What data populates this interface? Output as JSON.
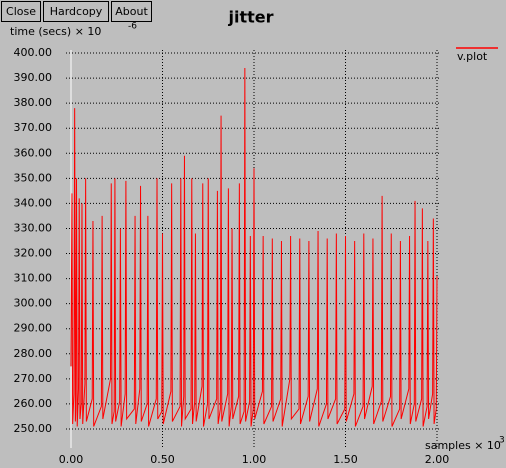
{
  "buttons": [
    "Close",
    "Hardcopy",
    "About"
  ],
  "chart_data": {
    "type": "line",
    "title": "jitter",
    "y_label": "time (secs) × 10",
    "y_label_exponent": "-6",
    "x_label": "samples × 10",
    "x_label_exponent": "3",
    "xlim": [
      0,
      2
    ],
    "ylim": [
      250,
      400
    ],
    "xticks": [
      {
        "value": 0,
        "label": "0.00"
      },
      {
        "value": 0.5,
        "label": "0.50"
      },
      {
        "value": 1,
        "label": "1.00"
      },
      {
        "value": 1.5,
        "label": "1.50"
      },
      {
        "value": 2,
        "label": "2.00"
      }
    ],
    "yticks": [
      {
        "value": 250,
        "label": "250.00"
      },
      {
        "value": 260,
        "label": "260.00"
      },
      {
        "value": 270,
        "label": "270.00"
      },
      {
        "value": 280,
        "label": "280.00"
      },
      {
        "value": 290,
        "label": "290.00"
      },
      {
        "value": 300,
        "label": "300.00"
      },
      {
        "value": 310,
        "label": "310.00"
      },
      {
        "value": 320,
        "label": "320.00"
      },
      {
        "value": 330,
        "label": "330.00"
      },
      {
        "value": 340,
        "label": "340.00"
      },
      {
        "value": 350,
        "label": "350.00"
      },
      {
        "value": 360,
        "label": "360.00"
      },
      {
        "value": 370,
        "label": "370.00"
      },
      {
        "value": 380,
        "label": "380.00"
      },
      {
        "value": 390,
        "label": "390.00"
      },
      {
        "value": 400,
        "label": "400.00"
      }
    ],
    "grid": true,
    "legend": "top-right",
    "x": [
      0,
      0.005,
      0.009,
      0.016,
      0.02,
      0.024,
      0.026,
      0.03,
      0.034,
      0.041,
      0.045,
      0.049,
      0.056,
      0.06,
      0.064,
      0.076,
      0.08,
      0.084,
      0.116,
      0.12,
      0.124,
      0.166,
      0.17,
      0.174,
      0.216,
      0.22,
      0.224,
      0.236,
      0.24,
      0.244,
      0.266,
      0.27,
      0.274,
      0.296,
      0.3,
      0.304,
      0.346,
      0.35,
      0.354,
      0.376,
      0.38,
      0.384,
      0.416,
      0.42,
      0.424,
      0.466,
      0.47,
      0.474,
      0.496,
      0.5,
      0.504,
      0.546,
      0.55,
      0.554,
      0.596,
      0.6,
      0.604,
      0.616,
      0.62,
      0.624,
      0.656,
      0.66,
      0.664,
      0.676,
      0.68,
      0.684,
      0.716,
      0.72,
      0.724,
      0.746,
      0.75,
      0.754,
      0.796,
      0.8,
      0.804,
      0.816,
      0.82,
      0.824,
      0.856,
      0.86,
      0.864,
      0.876,
      0.88,
      0.884,
      0.916,
      0.92,
      0.924,
      0.946,
      0.95,
      0.954,
      0.976,
      0.98,
      0.984,
      0.996,
      1.0,
      1.004,
      1.046,
      1.05,
      1.054,
      1.096,
      1.1,
      1.104,
      1.146,
      1.15,
      1.154,
      1.196,
      1.2,
      1.204,
      1.246,
      1.25,
      1.254,
      1.296,
      1.3,
      1.304,
      1.346,
      1.35,
      1.354,
      1.396,
      1.4,
      1.404,
      1.446,
      1.45,
      1.454,
      1.496,
      1.5,
      1.504,
      1.546,
      1.55,
      1.554,
      1.596,
      1.6,
      1.604,
      1.646,
      1.65,
      1.654,
      1.696,
      1.7,
      1.704,
      1.746,
      1.75,
      1.754,
      1.796,
      1.8,
      1.804,
      1.846,
      1.85,
      1.854,
      1.876,
      1.88,
      1.884,
      1.916,
      1.92,
      1.924,
      1.946,
      1.95,
      1.954,
      1.976,
      1.98,
      1.984,
      1.996,
      2.0
    ],
    "series": [
      {
        "name": "v.plot",
        "color": "#ff0000",
        "values": [
          275,
          344,
          252,
          264,
          378,
          253,
          258,
          350,
          251,
          266,
          342,
          254,
          260,
          340,
          252,
          268,
          350,
          253,
          262,
          333,
          251,
          259,
          335,
          254,
          270,
          348,
          252,
          257,
          350,
          253,
          261,
          330,
          251,
          264,
          349,
          254,
          258,
          335,
          252,
          266,
          347,
          253,
          260,
          335,
          251,
          262,
          350,
          254,
          257,
          328,
          252,
          265,
          348,
          253,
          259,
          350,
          251,
          263,
          359,
          254,
          258,
          350,
          252,
          261,
          328,
          253,
          267,
          348,
          251,
          260,
          350,
          254,
          262,
          345,
          252,
          258,
          375,
          253,
          264,
          346,
          251,
          259,
          330,
          254,
          263,
          348,
          252,
          257,
          394,
          253,
          261,
          327,
          251,
          258,
          354,
          254,
          265,
          327,
          252,
          259,
          326,
          253,
          262,
          325,
          251,
          270,
          327,
          254,
          258,
          326,
          252,
          263,
          325,
          253,
          266,
          329,
          251,
          260,
          326,
          254,
          262,
          328,
          252,
          258,
          327,
          253,
          264,
          325,
          251,
          259,
          328,
          254,
          267,
          326,
          252,
          261,
          343,
          253,
          263,
          328,
          251,
          258,
          325,
          254,
          266,
          327,
          252,
          260,
          341,
          253,
          262,
          338,
          251,
          259,
          325,
          254,
          264,
          334,
          252,
          258,
          311
        ]
      }
    ]
  }
}
